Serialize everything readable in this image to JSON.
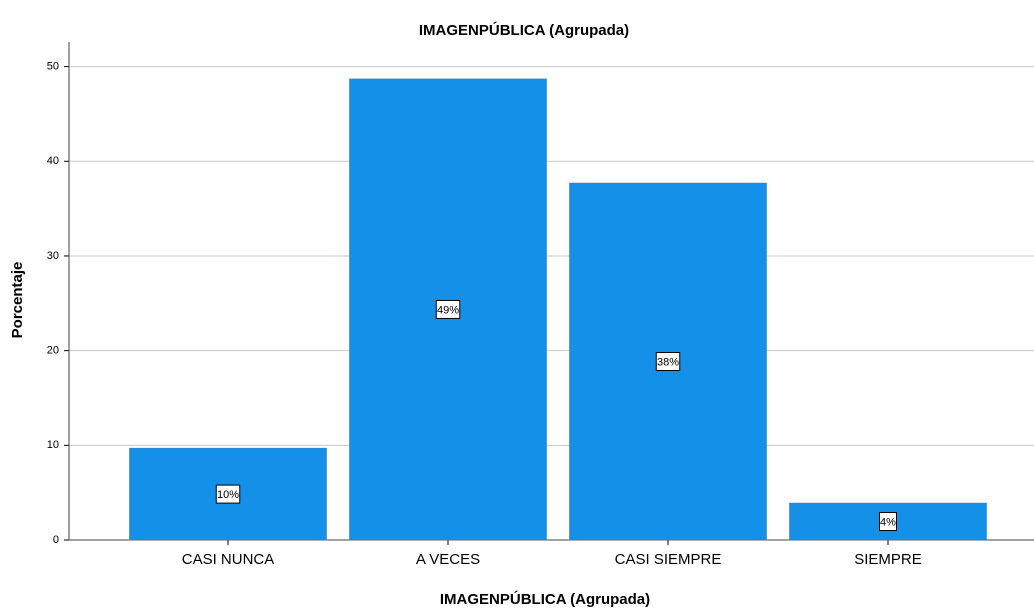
{
  "chart_data": {
    "type": "bar",
    "title": "IMAGENPÚBLICA (Agrupada)",
    "x_label": "IMAGENPÚBLICA (Agrupada)",
    "y_label": "Porcentaje",
    "categories": [
      "CASI NUNCA",
      "A VECES",
      "CASI SIEMPRE",
      "SIEMPRE"
    ],
    "values": [
      9.7,
      48.7,
      37.7,
      3.9
    ],
    "value_labels": [
      "10%",
      "49%",
      "38%",
      "4%"
    ],
    "color": "#1490e8",
    "ylim": [
      0,
      52.6
    ],
    "yticks": [
      0,
      10,
      20,
      30,
      40,
      50
    ],
    "grid": true
  }
}
